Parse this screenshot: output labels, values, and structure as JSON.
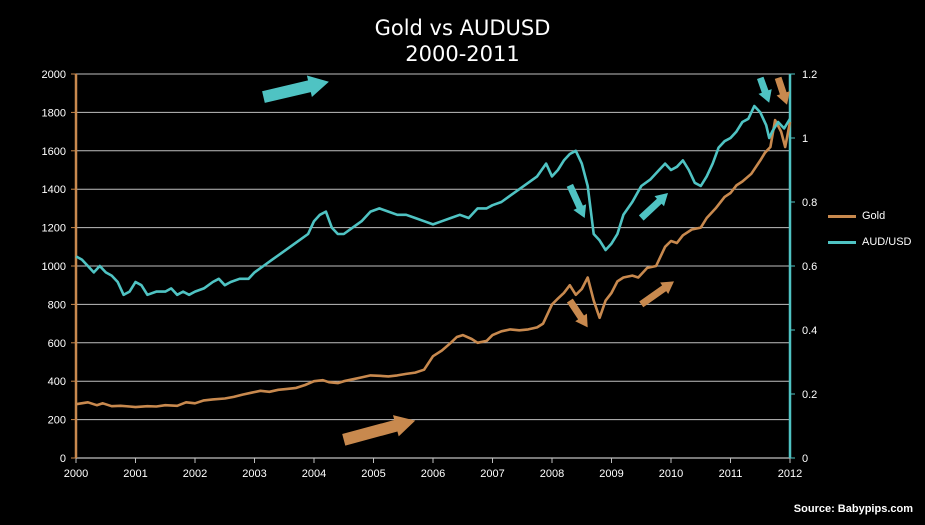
{
  "chart_data": {
    "type": "line",
    "title": "Gold vs AUDUSD",
    "subtitle": "2000-2011",
    "source": "Source: Babypips.com",
    "xlim": [
      2000,
      2012
    ],
    "x_ticks": [
      "2000",
      "2001",
      "2002",
      "2003",
      "2004",
      "2005",
      "2006",
      "2007",
      "2008",
      "2009",
      "2010",
      "2011",
      "2012"
    ],
    "y_left": {
      "lim": [
        0,
        2000
      ],
      "ticks": [
        "0",
        "200",
        "400",
        "600",
        "800",
        "1000",
        "1200",
        "1400",
        "1600",
        "1800",
        "2000"
      ]
    },
    "y_right": {
      "lim": [
        0,
        1.2
      ],
      "ticks": [
        "0",
        "0.2",
        "0.4",
        "0.6",
        "0.8",
        "1",
        "1.2"
      ]
    },
    "grid": true,
    "legend": "right",
    "series": [
      {
        "name": "Gold",
        "axis": "left",
        "color": "#c8894e",
        "x": [
          2000.0,
          2000.2,
          2000.35,
          2000.45,
          2000.6,
          2000.75,
          2000.9,
          2001.0,
          2001.2,
          2001.35,
          2001.5,
          2001.7,
          2001.85,
          2002.0,
          2002.15,
          2002.3,
          2002.5,
          2002.65,
          2002.8,
          2002.95,
          2003.1,
          2003.25,
          2003.4,
          2003.55,
          2003.7,
          2003.85,
          2004.0,
          2004.15,
          2004.25,
          2004.4,
          2004.5,
          2004.65,
          2004.8,
          2004.95,
          2005.1,
          2005.25,
          2005.4,
          2005.55,
          2005.7,
          2005.85,
          2006.0,
          2006.15,
          2006.3,
          2006.4,
          2006.5,
          2006.65,
          2006.75,
          2006.9,
          2007.0,
          2007.15,
          2007.3,
          2007.45,
          2007.6,
          2007.75,
          2007.85,
          2008.0,
          2008.1,
          2008.2,
          2008.3,
          2008.4,
          2008.5,
          2008.6,
          2008.7,
          2008.8,
          2008.9,
          2009.0,
          2009.1,
          2009.2,
          2009.35,
          2009.45,
          2009.6,
          2009.75,
          2009.9,
          2010.0,
          2010.1,
          2010.2,
          2010.35,
          2010.5,
          2010.6,
          2010.75,
          2010.9,
          2011.0,
          2011.1,
          2011.2,
          2011.35,
          2011.5,
          2011.58,
          2011.67,
          2011.75,
          2011.85,
          2011.92,
          2012.0
        ],
        "values": [
          280,
          290,
          275,
          285,
          270,
          272,
          268,
          265,
          270,
          268,
          275,
          272,
          290,
          285,
          300,
          305,
          310,
          318,
          330,
          340,
          350,
          345,
          355,
          360,
          365,
          380,
          400,
          405,
          395,
          390,
          400,
          410,
          420,
          430,
          428,
          425,
          430,
          438,
          445,
          460,
          530,
          560,
          600,
          630,
          640,
          620,
          600,
          610,
          640,
          660,
          670,
          665,
          670,
          680,
          700,
          800,
          830,
          860,
          900,
          850,
          880,
          940,
          820,
          730,
          820,
          860,
          920,
          940,
          950,
          940,
          990,
          1000,
          1100,
          1130,
          1120,
          1160,
          1190,
          1200,
          1250,
          1300,
          1360,
          1380,
          1420,
          1440,
          1480,
          1550,
          1590,
          1620,
          1760,
          1700,
          1620,
          1750
        ]
      },
      {
        "name": "AUD/USD",
        "axis": "right",
        "color": "#4fc3c3",
        "x": [
          2000.0,
          2000.1,
          2000.2,
          2000.3,
          2000.4,
          2000.5,
          2000.6,
          2000.7,
          2000.8,
          2000.9,
          2001.0,
          2001.1,
          2001.2,
          2001.35,
          2001.5,
          2001.6,
          2001.7,
          2001.8,
          2001.9,
          2002.0,
          2002.15,
          2002.3,
          2002.4,
          2002.5,
          2002.6,
          2002.75,
          2002.9,
          2003.0,
          2003.15,
          2003.3,
          2003.45,
          2003.6,
          2003.75,
          2003.9,
          2004.0,
          2004.1,
          2004.2,
          2004.3,
          2004.4,
          2004.5,
          2004.65,
          2004.8,
          2004.95,
          2005.1,
          2005.25,
          2005.4,
          2005.55,
          2005.7,
          2005.85,
          2006.0,
          2006.15,
          2006.3,
          2006.45,
          2006.6,
          2006.75,
          2006.9,
          2007.0,
          2007.15,
          2007.3,
          2007.45,
          2007.6,
          2007.75,
          2007.9,
          2008.0,
          2008.1,
          2008.2,
          2008.3,
          2008.4,
          2008.5,
          2008.6,
          2008.7,
          2008.8,
          2008.9,
          2009.0,
          2009.1,
          2009.2,
          2009.35,
          2009.5,
          2009.65,
          2009.8,
          2009.9,
          2010.0,
          2010.1,
          2010.2,
          2010.3,
          2010.4,
          2010.5,
          2010.6,
          2010.7,
          2010.8,
          2010.9,
          2011.0,
          2011.1,
          2011.2,
          2011.3,
          2011.4,
          2011.5,
          2011.6,
          2011.65,
          2011.7,
          2011.8,
          2011.9,
          2012.0
        ],
        "values": [
          0.63,
          0.62,
          0.6,
          0.58,
          0.6,
          0.58,
          0.57,
          0.55,
          0.51,
          0.52,
          0.55,
          0.54,
          0.51,
          0.52,
          0.52,
          0.53,
          0.51,
          0.52,
          0.51,
          0.52,
          0.53,
          0.55,
          0.56,
          0.54,
          0.55,
          0.56,
          0.56,
          0.58,
          0.6,
          0.62,
          0.64,
          0.66,
          0.68,
          0.7,
          0.74,
          0.76,
          0.77,
          0.72,
          0.7,
          0.7,
          0.72,
          0.74,
          0.77,
          0.78,
          0.77,
          0.76,
          0.76,
          0.75,
          0.74,
          0.73,
          0.74,
          0.75,
          0.76,
          0.75,
          0.78,
          0.78,
          0.79,
          0.8,
          0.82,
          0.84,
          0.86,
          0.88,
          0.92,
          0.88,
          0.9,
          0.93,
          0.95,
          0.96,
          0.92,
          0.85,
          0.7,
          0.68,
          0.65,
          0.67,
          0.7,
          0.76,
          0.8,
          0.85,
          0.87,
          0.9,
          0.92,
          0.9,
          0.91,
          0.93,
          0.9,
          0.86,
          0.85,
          0.88,
          0.92,
          0.97,
          0.99,
          1.0,
          1.02,
          1.05,
          1.06,
          1.1,
          1.08,
          1.04,
          1.0,
          1.02,
          1.05,
          1.03,
          1.06
        ]
      }
    ],
    "annotations": [
      {
        "kind": "arrow",
        "color": "#4fc3c3",
        "x1": 2003.15,
        "y1": 1880,
        "x2": 2004.25,
        "y2": 1960,
        "axis": "left"
      },
      {
        "kind": "arrow",
        "color": "#c8894e",
        "x1": 2004.5,
        "y1": 95,
        "x2": 2005.7,
        "y2": 195,
        "axis": "left"
      },
      {
        "kind": "arrow",
        "color": "#4fc3c3",
        "x1": 2008.3,
        "y1": 1420,
        "x2": 2008.55,
        "y2": 1250,
        "axis": "left"
      },
      {
        "kind": "arrow",
        "color": "#c8894e",
        "x1": 2008.3,
        "y1": 820,
        "x2": 2008.6,
        "y2": 680,
        "axis": "left"
      },
      {
        "kind": "arrow",
        "color": "#4fc3c3",
        "x1": 2009.5,
        "y1": 1250,
        "x2": 2009.95,
        "y2": 1380,
        "axis": "left"
      },
      {
        "kind": "arrow",
        "color": "#c8894e",
        "x1": 2009.5,
        "y1": 800,
        "x2": 2010.05,
        "y2": 920,
        "axis": "left"
      },
      {
        "kind": "arrow",
        "color": "#4fc3c3",
        "x1": 2011.5,
        "y1": 1980,
        "x2": 2011.65,
        "y2": 1850,
        "axis": "left"
      },
      {
        "kind": "arrow",
        "color": "#c8894e",
        "x1": 2011.8,
        "y1": 1980,
        "x2": 2011.95,
        "y2": 1840,
        "axis": "left"
      }
    ]
  }
}
